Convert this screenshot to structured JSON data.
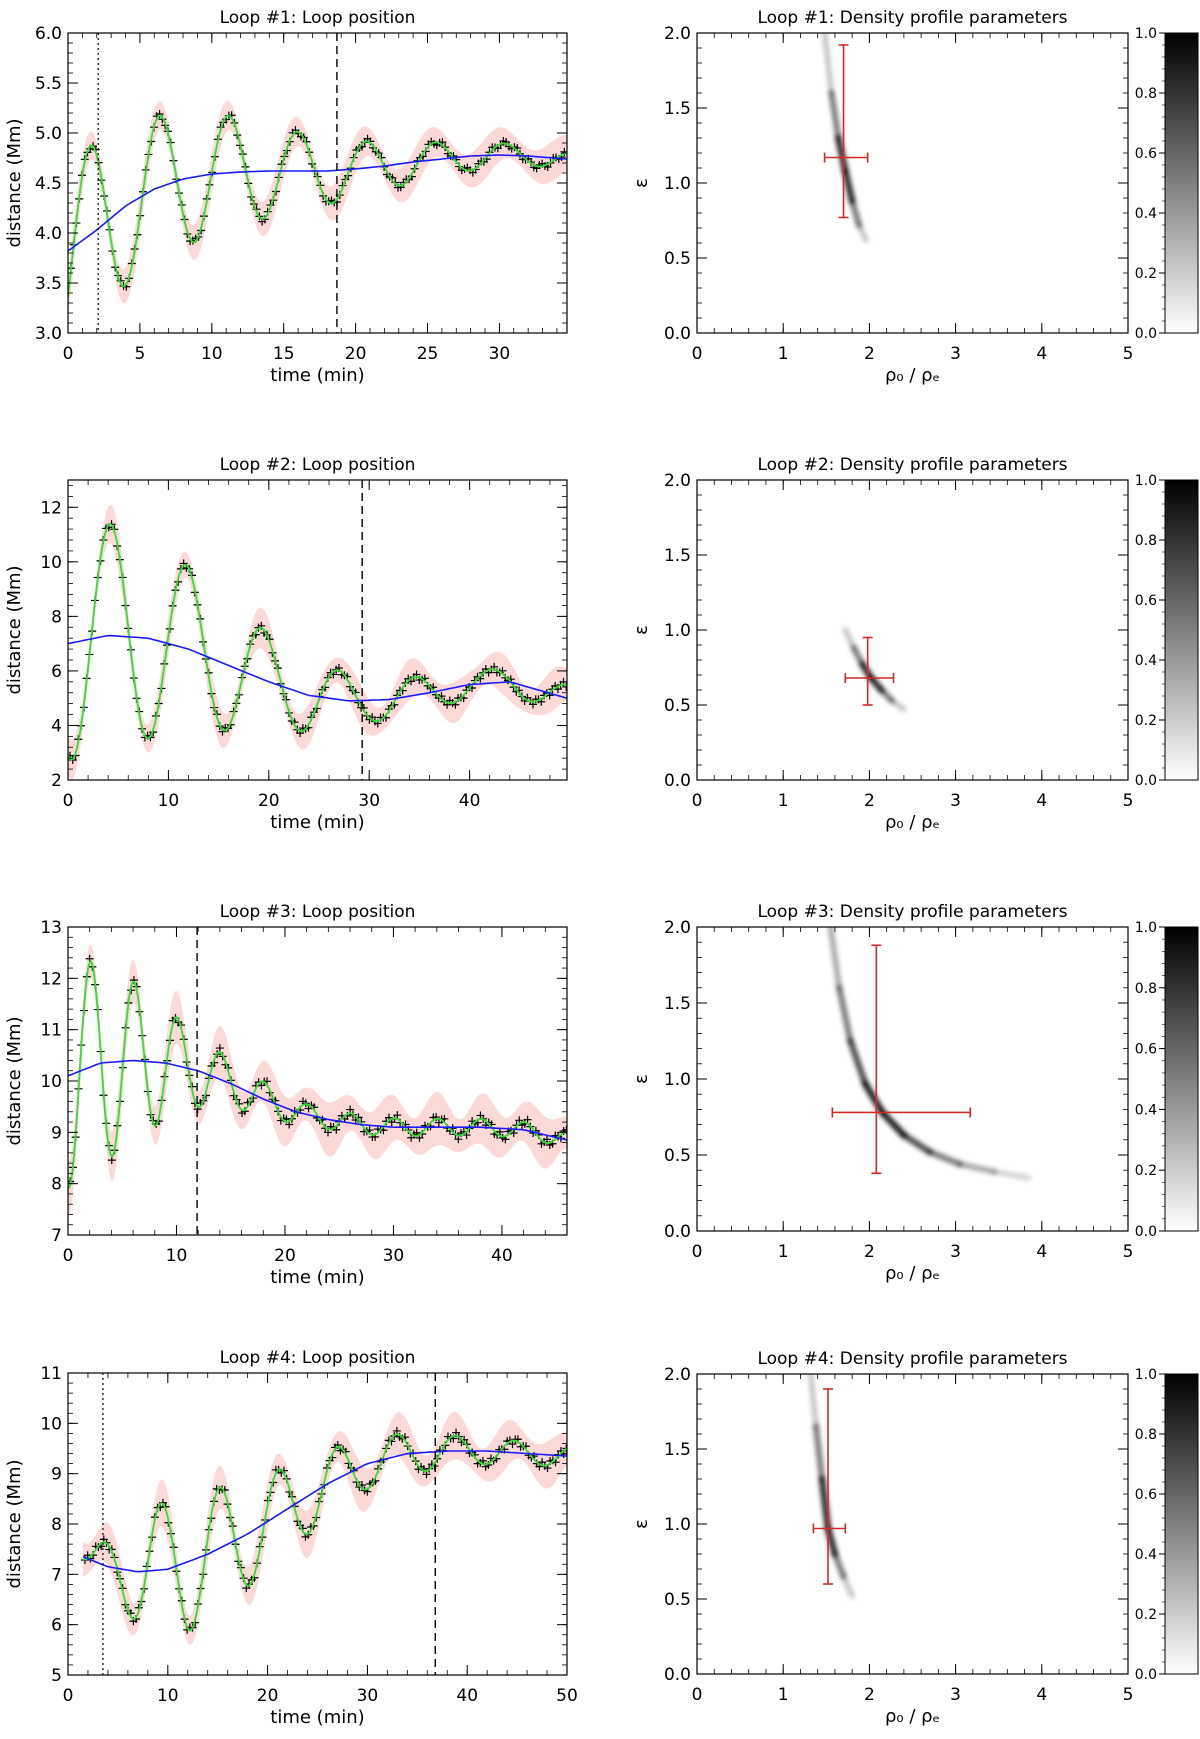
{
  "chart_data": [
    {
      "type": "line",
      "title": "Loop #1: Loop position",
      "xlabel": "time (min)",
      "ylabel": "distance (Mm)",
      "xlim": [
        0,
        34.7
      ],
      "ylim": [
        3.0,
        6.0
      ],
      "xticks": [
        "0",
        "5",
        "10",
        "15",
        "20",
        "25",
        "30"
      ],
      "xtick_values": [
        0,
        5,
        10,
        15,
        20,
        25,
        30
      ],
      "yticks": [
        "3.0",
        "3.5",
        "4.0",
        "4.5",
        "5.0",
        "5.5",
        "6.0"
      ],
      "ytick_values": [
        3.0,
        3.5,
        4.0,
        4.5,
        5.0,
        5.5,
        6.0
      ],
      "dotted_line_x": 2.1,
      "dashed_line_x": 18.7,
      "trend": {
        "x": [
          0,
          2,
          4,
          6,
          8,
          10,
          12,
          14,
          16,
          18,
          20,
          22,
          24,
          26,
          28,
          30,
          32,
          34.7
        ],
        "y": [
          3.82,
          4.03,
          4.27,
          4.44,
          4.54,
          4.59,
          4.61,
          4.62,
          4.62,
          4.62,
          4.64,
          4.67,
          4.71,
          4.74,
          4.77,
          4.78,
          4.77,
          4.74
        ]
      },
      "oscillation": {
        "amplitude": [
          0.95,
          0.75,
          0.62,
          0.42,
          0.28,
          0.18,
          0.12,
          0.08
        ],
        "amplitude_t": [
          0,
          5,
          10,
          15,
          20,
          25,
          30,
          34.7
        ],
        "period": 4.8,
        "phase": -0.5
      },
      "envelope_halfwidth": 0.16
    },
    {
      "type": "heatmap",
      "title": "Loop #1: Density profile parameters",
      "xlabel": "ρ₀ / ρₑ",
      "ylabel": "ε",
      "xlim": [
        0,
        5
      ],
      "ylim": [
        0,
        2
      ],
      "xticks": [
        "0",
        "1",
        "2",
        "3",
        "4",
        "5"
      ],
      "xtick_values": [
        0,
        1,
        2,
        3,
        4,
        5
      ],
      "yticks": [
        "0.0",
        "0.5",
        "1.0",
        "1.5",
        "2.0"
      ],
      "ytick_values": [
        0,
        0.5,
        1.0,
        1.5,
        2.0
      ],
      "colorbar_ticks": [
        "0.0",
        "0.2",
        "0.4",
        "0.6",
        "0.8",
        "1.0"
      ],
      "colorbar_values": [
        0,
        0.2,
        0.4,
        0.6,
        0.8,
        1.0
      ],
      "ridge": {
        "x": [
          1.48,
          1.56,
          1.64,
          1.72,
          1.8,
          1.88,
          1.96
        ],
        "y": [
          2.0,
          1.6,
          1.3,
          1.08,
          0.88,
          0.72,
          0.62
        ],
        "peak_index": 3
      },
      "estimate": {
        "x": 1.7,
        "y": 1.17,
        "xerr": [
          1.48,
          1.98
        ],
        "yerr": [
          0.77,
          1.92
        ]
      }
    },
    {
      "type": "line",
      "title": "Loop #2: Loop position",
      "xlabel": "time (min)",
      "ylabel": "distance (Mm)",
      "xlim": [
        0,
        49.7
      ],
      "ylim": [
        2,
        13
      ],
      "xticks": [
        "0",
        "10",
        "20",
        "30",
        "40"
      ],
      "xtick_values": [
        0,
        10,
        20,
        30,
        40
      ],
      "yticks": [
        "2",
        "4",
        "6",
        "8",
        "10",
        "12"
      ],
      "ytick_values": [
        2,
        4,
        6,
        8,
        10,
        12
      ],
      "dashed_line_x": 29.3,
      "trend": {
        "x": [
          0,
          4,
          8,
          12,
          16,
          20,
          24,
          28,
          32,
          36,
          40,
          44,
          49.7
        ],
        "y": [
          7.0,
          7.3,
          7.2,
          6.8,
          6.2,
          5.6,
          5.1,
          4.9,
          4.95,
          5.2,
          5.5,
          5.6,
          5.0
        ]
      },
      "oscillation": {
        "amplitude": [
          4.3,
          4.0,
          2.7,
          1.6,
          0.8,
          0.5,
          0.5
        ],
        "amplitude_t": [
          0,
          6,
          14,
          21,
          30,
          40,
          49.7
        ],
        "period": 7.6,
        "phase": -1.9
      },
      "envelope_halfwidth": 0.6
    },
    {
      "type": "heatmap",
      "title": "Loop #2: Density profile parameters",
      "xlabel": "ρ₀ / ρₑ",
      "ylabel": "ε",
      "xlim": [
        0,
        5
      ],
      "ylim": [
        0,
        2
      ],
      "xticks": [
        "0",
        "1",
        "2",
        "3",
        "4",
        "5"
      ],
      "xtick_values": [
        0,
        1,
        2,
        3,
        4,
        5
      ],
      "yticks": [
        "0.0",
        "0.5",
        "1.0",
        "1.5",
        "2.0"
      ],
      "ytick_values": [
        0,
        0.5,
        1.0,
        1.5,
        2.0
      ],
      "colorbar_ticks": [
        "0.0",
        "0.2",
        "0.4",
        "0.6",
        "0.8",
        "1.0"
      ],
      "colorbar_values": [
        0,
        0.2,
        0.4,
        0.6,
        0.8,
        1.0
      ],
      "ridge": {
        "x": [
          1.72,
          1.82,
          1.92,
          2.02,
          2.14,
          2.26,
          2.4
        ],
        "y": [
          1.0,
          0.88,
          0.77,
          0.68,
          0.6,
          0.53,
          0.47
        ],
        "peak_index": 3
      },
      "estimate": {
        "x": 1.98,
        "y": 0.68,
        "xerr": [
          1.72,
          2.28
        ],
        "yerr": [
          0.5,
          0.95
        ]
      }
    },
    {
      "type": "line",
      "title": "Loop #3: Loop position",
      "xlabel": "time (min)",
      "ylabel": "distance (Mm)",
      "xlim": [
        0,
        46
      ],
      "ylim": [
        7,
        13
      ],
      "xticks": [
        "0",
        "10",
        "20",
        "30",
        "40"
      ],
      "xtick_values": [
        0,
        10,
        20,
        30,
        40
      ],
      "yticks": [
        "7",
        "8",
        "9",
        "10",
        "11",
        "12",
        "13"
      ],
      "ytick_values": [
        7,
        8,
        9,
        10,
        11,
        12,
        13
      ],
      "dashed_line_x": 11.9,
      "trend": {
        "x": [
          0,
          3,
          6,
          9,
          12,
          15,
          18,
          21,
          24,
          27,
          30,
          34,
          38,
          42,
          46
        ],
        "y": [
          10.1,
          10.35,
          10.4,
          10.35,
          10.2,
          9.95,
          9.65,
          9.4,
          9.25,
          9.15,
          9.1,
          9.1,
          9.1,
          9.05,
          8.85
        ]
      },
      "oscillation": {
        "amplitude": [
          2.2,
          2.0,
          1.4,
          0.8,
          0.45,
          0.2,
          0.17,
          0.15
        ],
        "amplitude_t": [
          0,
          3,
          7,
          11,
          15,
          22,
          32,
          46
        ],
        "period": 4.0,
        "phase": -1.7
      },
      "envelope_halfwidth": 0.42
    },
    {
      "type": "heatmap",
      "title": "Loop #3: Density profile parameters",
      "xlabel": "ρ₀ / ρₑ",
      "ylabel": "ε",
      "xlim": [
        0,
        5
      ],
      "ylim": [
        0,
        2
      ],
      "xticks": [
        "0",
        "1",
        "2",
        "3",
        "4",
        "5"
      ],
      "xtick_values": [
        0,
        1,
        2,
        3,
        4,
        5
      ],
      "yticks": [
        "0.0",
        "0.5",
        "1.0",
        "1.5",
        "2.0"
      ],
      "ytick_values": [
        0,
        0.5,
        1.0,
        1.5,
        2.0
      ],
      "colorbar_ticks": [
        "0.0",
        "0.2",
        "0.4",
        "0.6",
        "0.8",
        "1.0"
      ],
      "colorbar_values": [
        0,
        0.2,
        0.4,
        0.6,
        0.8,
        1.0
      ],
      "ridge": {
        "x": [
          1.55,
          1.65,
          1.78,
          1.95,
          2.15,
          2.4,
          2.7,
          3.05,
          3.45,
          3.85
        ],
        "y": [
          2.0,
          1.6,
          1.25,
          0.97,
          0.78,
          0.63,
          0.52,
          0.44,
          0.39,
          0.35
        ],
        "peak_index": 4
      },
      "estimate": {
        "x": 2.08,
        "y": 0.78,
        "xerr": [
          1.57,
          3.17
        ],
        "yerr": [
          0.38,
          1.88
        ]
      }
    },
    {
      "type": "line",
      "title": "Loop #4: Loop position",
      "xlabel": "time (min)",
      "ylabel": "distance (Mm)",
      "xlim": [
        0,
        50
      ],
      "ylim": [
        5,
        11
      ],
      "xticks": [
        "0",
        "10",
        "20",
        "30",
        "40",
        "50"
      ],
      "xtick_values": [
        0,
        10,
        20,
        30,
        40,
        50
      ],
      "yticks": [
        "5",
        "6",
        "7",
        "8",
        "9",
        "10",
        "11"
      ],
      "ytick_values": [
        5,
        6,
        7,
        8,
        9,
        10,
        11
      ],
      "dotted_line_x": 3.5,
      "dashed_line_x": 36.8,
      "trend": {
        "x": [
          1.5,
          4,
          7,
          10,
          14,
          18,
          22,
          26,
          30,
          34,
          38,
          42,
          46,
          50
        ],
        "y": [
          7.35,
          7.15,
          7.05,
          7.1,
          7.4,
          7.8,
          8.3,
          8.8,
          9.2,
          9.4,
          9.45,
          9.45,
          9.4,
          9.35
        ]
      },
      "oscillation": {
        "amplitude": [
          0.1,
          1.3,
          1.4,
          1.1,
          0.8,
          0.5,
          0.28,
          0.2
        ],
        "amplitude_t": [
          1.5,
          8.5,
          12,
          17,
          23,
          30,
          40,
          50
        ],
        "period": 5.9,
        "phase": -2.1
      },
      "envelope_halfwidth": 0.38
    },
    {
      "type": "heatmap",
      "title": "Loop #4: Density profile parameters",
      "xlabel": "ρ₀ / ρₑ",
      "ylabel": "ε",
      "xlim": [
        0,
        5
      ],
      "ylim": [
        0,
        2
      ],
      "xticks": [
        "0",
        "1",
        "2",
        "3",
        "4",
        "5"
      ],
      "xtick_values": [
        0,
        1,
        2,
        3,
        4,
        5
      ],
      "yticks": [
        "0.0",
        "0.5",
        "1.0",
        "1.5",
        "2.0"
      ],
      "ytick_values": [
        0,
        0.5,
        1.0,
        1.5,
        2.0
      ],
      "colorbar_ticks": [
        "0.0",
        "0.2",
        "0.4",
        "0.6",
        "0.8",
        "1.0"
      ],
      "colorbar_values": [
        0,
        0.2,
        0.4,
        0.6,
        0.8,
        1.0
      ],
      "ridge": {
        "x": [
          1.32,
          1.38,
          1.45,
          1.52,
          1.6,
          1.7,
          1.8
        ],
        "y": [
          2.0,
          1.65,
          1.3,
          0.97,
          0.8,
          0.65,
          0.52
        ],
        "peak_index": 3
      },
      "estimate": {
        "x": 1.52,
        "y": 0.97,
        "xerr": [
          1.35,
          1.72
        ],
        "yerr": [
          0.6,
          1.9
        ]
      }
    }
  ],
  "colors": {
    "fit": "#33dd33",
    "trend": "#1a1aff",
    "envelope": "#fbd9d6",
    "errorbar": "#d42a2a",
    "data": "#000000"
  }
}
